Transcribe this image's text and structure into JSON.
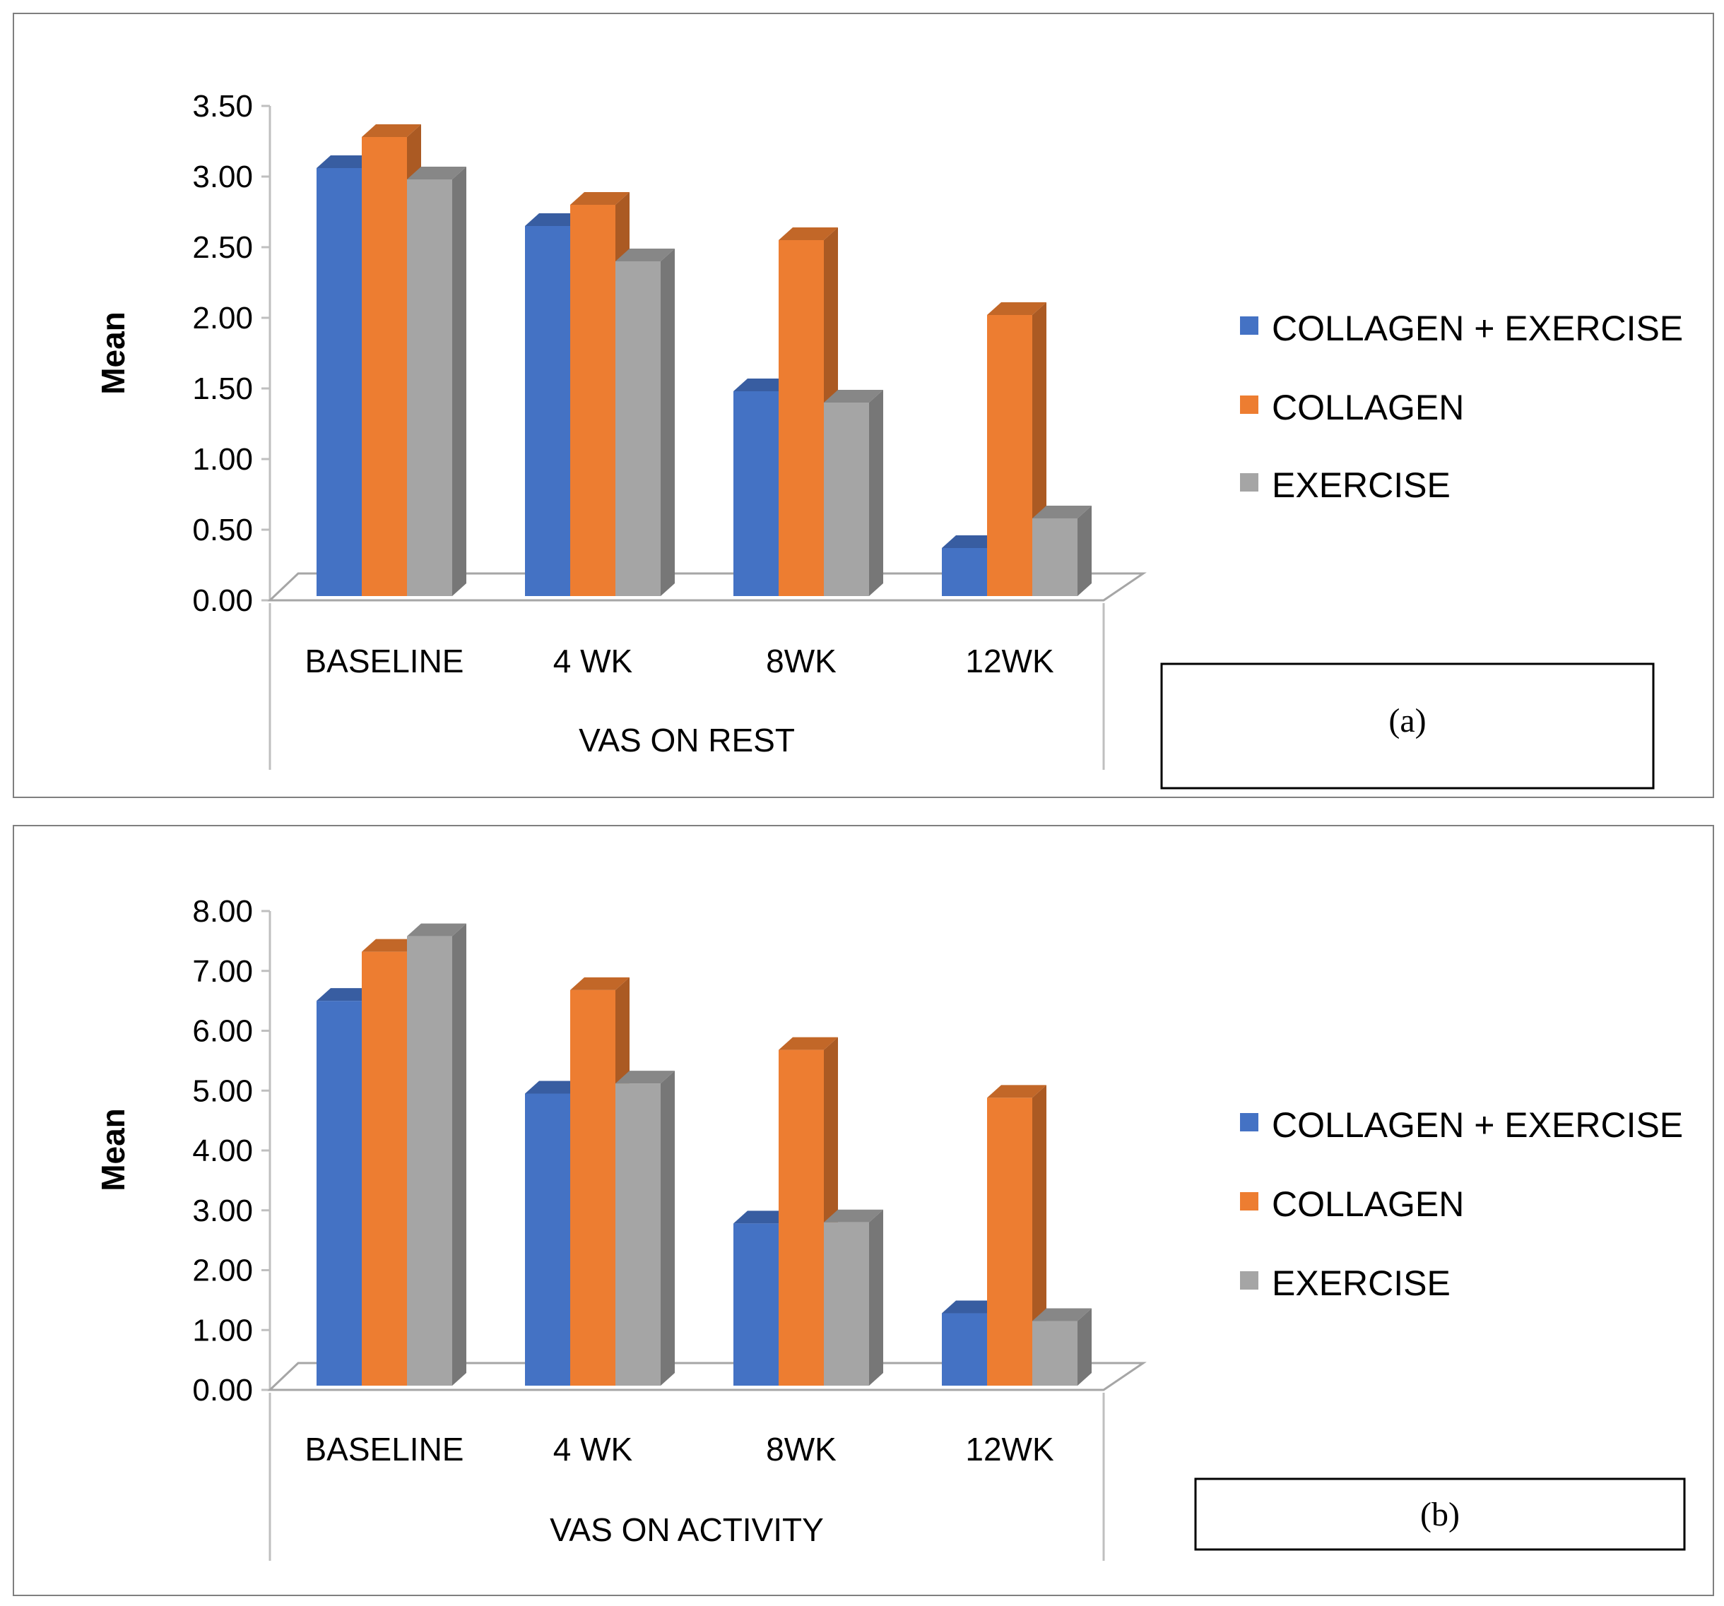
{
  "colors": {
    "series": [
      "#4472C4",
      "#ED7D31",
      "#A5A5A5"
    ]
  },
  "chart_data": [
    {
      "type": "bar",
      "panel": "(a)",
      "title": "",
      "xlabel": "VAS ON REST",
      "ylabel": "Mean",
      "ylim": [
        0,
        3.5
      ],
      "yticks": [
        "0.00",
        "0.50",
        "1.00",
        "1.50",
        "2.00",
        "2.50",
        "3.00",
        "3.50"
      ],
      "categories": [
        "BASELINE",
        "4 WK",
        "8WK",
        "12WK"
      ],
      "series": [
        {
          "name": "COLLAGEN + EXERCISE",
          "values": [
            3.06,
            2.65,
            1.48,
            0.37
          ]
        },
        {
          "name": "COLLAGEN",
          "values": [
            3.28,
            2.8,
            2.55,
            2.02
          ]
        },
        {
          "name": "EXERCISE",
          "values": [
            2.98,
            2.4,
            1.4,
            0.58
          ]
        }
      ],
      "legend": "right",
      "caption": "(a)"
    },
    {
      "type": "bar",
      "panel": "(b)",
      "title": "",
      "xlabel": "VAS ON ACTIVITY",
      "ylabel": "Mean",
      "ylim": [
        0,
        8
      ],
      "yticks": [
        "0.00",
        "1.00",
        "2.00",
        "3.00",
        "4.00",
        "5.00",
        "6.00",
        "7.00",
        "8.00"
      ],
      "categories": [
        "BASELINE",
        "4 WK",
        "8WK",
        "12WK"
      ],
      "series": [
        {
          "name": "COLLAGEN + EXERCISE",
          "values": [
            6.5,
            4.95,
            2.78,
            1.28
          ]
        },
        {
          "name": "COLLAGEN",
          "values": [
            7.32,
            6.68,
            5.68,
            4.88
          ]
        },
        {
          "name": "EXERCISE",
          "values": [
            7.58,
            5.12,
            2.8,
            1.15
          ]
        }
      ],
      "legend": "right",
      "caption": "(b)"
    }
  ]
}
